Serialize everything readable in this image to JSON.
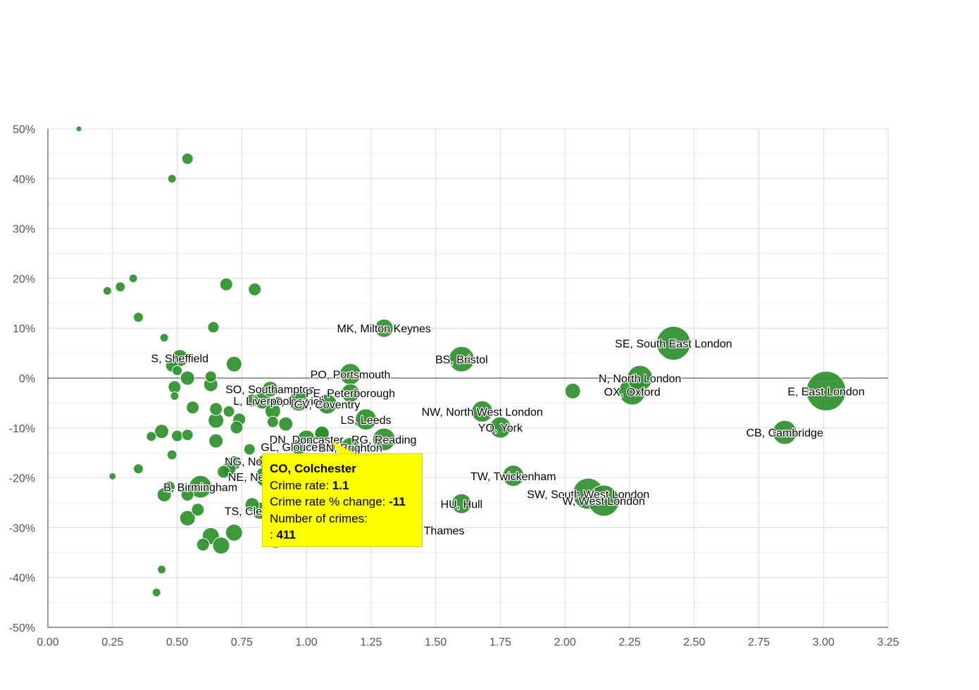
{
  "chart_data": {
    "type": "scatter",
    "xlim": [
      0,
      3.25
    ],
    "ylim": [
      -50,
      50
    ],
    "x_ticks": [
      "0.00",
      "0.25",
      "0.50",
      "0.75",
      "1.00",
      "1.25",
      "1.50",
      "1.75",
      "2.00",
      "2.25",
      "2.50",
      "2.75",
      "3.00",
      "3.25"
    ],
    "y_ticks": [
      "50%",
      "40%",
      "30%",
      "20%",
      "10%",
      "0%",
      "-10%",
      "-20%",
      "-30%",
      "-40%",
      "-50%"
    ],
    "grid": true,
    "point_color": "#2e8f2e",
    "highlight_color": "#ffffff",
    "points": [
      {
        "x": 0.12,
        "y": 50,
        "s": 4
      },
      {
        "x": 0.54,
        "y": 44,
        "s": 8
      },
      {
        "x": 0.48,
        "y": 40,
        "s": 6
      },
      {
        "x": 0.23,
        "y": 17.5,
        "s": 6
      },
      {
        "x": 0.28,
        "y": 18.3,
        "s": 7
      },
      {
        "x": 0.33,
        "y": 20,
        "s": 6
      },
      {
        "x": 0.69,
        "y": 18.8,
        "s": 9
      },
      {
        "x": 0.8,
        "y": 17.8,
        "s": 9
      },
      {
        "x": 0.35,
        "y": 12.2,
        "s": 7
      },
      {
        "x": 0.45,
        "y": 8.1,
        "s": 6
      },
      {
        "x": 0.64,
        "y": 10.2,
        "s": 8
      },
      {
        "x": 1.3,
        "y": 10,
        "s": 13,
        "label": "MK, Milton Keynes"
      },
      {
        "x": 0.51,
        "y": 4,
        "s": 12,
        "label": "S, Sheffield"
      },
      {
        "x": 0.48,
        "y": 2.5,
        "s": 9
      },
      {
        "x": 0.5,
        "y": 1.5,
        "s": 7
      },
      {
        "x": 0.54,
        "y": 0,
        "s": 10
      },
      {
        "x": 0.72,
        "y": 2.8,
        "s": 11
      },
      {
        "x": 0.63,
        "y": 0.3,
        "s": 8
      },
      {
        "x": 0.63,
        "y": -1.3,
        "s": 10
      },
      {
        "x": 0.49,
        "y": -1.8,
        "s": 9
      },
      {
        "x": 0.49,
        "y": -3.6,
        "s": 6
      },
      {
        "x": 1.6,
        "y": 3.8,
        "s": 18,
        "label": "BS, Bristol"
      },
      {
        "x": 1.17,
        "y": 0.8,
        "s": 15,
        "label": "PO, Portsmouth"
      },
      {
        "x": 2.42,
        "y": 7,
        "s": 24,
        "label": "SE, South East London"
      },
      {
        "x": 2.29,
        "y": 0,
        "s": 18,
        "label": "N, North London"
      },
      {
        "x": 2.26,
        "y": -2.7,
        "s": 19,
        "label": "OX, Oxford"
      },
      {
        "x": 2.03,
        "y": -2.6,
        "s": 11
      },
      {
        "x": 3.01,
        "y": -2.6,
        "s": 28,
        "label": "E, East London"
      },
      {
        "x": 0.86,
        "y": -2.2,
        "s": 11,
        "label": "SO, Southampton"
      },
      {
        "x": 1.17,
        "y": -3.0,
        "s": 13,
        "label": "PE, Peterborough"
      },
      {
        "x": 0.97,
        "y": -4.6,
        "s": 14,
        "label": "IP, Ipswich"
      },
      {
        "x": 0.83,
        "y": -4.5,
        "s": 12,
        "label": "L, Liverpool"
      },
      {
        "x": 1.08,
        "y": -5.2,
        "s": 14,
        "label": "CV, Coventry"
      },
      {
        "x": 0.79,
        "y": -4.5,
        "s": 9
      },
      {
        "x": 0.56,
        "y": -5.9,
        "s": 9
      },
      {
        "x": 0.65,
        "y": -6.2,
        "s": 9
      },
      {
        "x": 0.7,
        "y": -6.7,
        "s": 8
      },
      {
        "x": 0.87,
        "y": -6.6,
        "s": 11
      },
      {
        "x": 0.74,
        "y": -8.3,
        "s": 9
      },
      {
        "x": 0.65,
        "y": -8.5,
        "s": 11
      },
      {
        "x": 0.87,
        "y": -8.8,
        "s": 8
      },
      {
        "x": 0.92,
        "y": -9.2,
        "s": 10
      },
      {
        "x": 0.73,
        "y": -9.9,
        "s": 9
      },
      {
        "x": 1.23,
        "y": -8.3,
        "s": 15,
        "label": "LS, Leeds"
      },
      {
        "x": 1.68,
        "y": -6.7,
        "s": 15,
        "label": "NW, North West London"
      },
      {
        "x": 1.75,
        "y": -9.9,
        "s": 15,
        "label": "YO, York"
      },
      {
        "x": 2.85,
        "y": -10.9,
        "s": 17,
        "label": "CB, Cambridge"
      },
      {
        "x": 0.44,
        "y": -10.7,
        "s": 10
      },
      {
        "x": 0.4,
        "y": -11.7,
        "s": 7
      },
      {
        "x": 0.5,
        "y": -11.6,
        "s": 8
      },
      {
        "x": 0.54,
        "y": -11.4,
        "s": 8
      },
      {
        "x": 0.65,
        "y": -12.6,
        "s": 10
      },
      {
        "x": 1.3,
        "y": -12.3,
        "s": 16,
        "label": "RG, Reading"
      },
      {
        "x": 1.0,
        "y": -12.3,
        "s": 13,
        "label": "DN, Doncaster"
      },
      {
        "x": 1.06,
        "y": -11.1,
        "s": 11,
        "highlight": true
      },
      {
        "x": 0.97,
        "y": -13.8,
        "s": 11,
        "label": "GL, Gloucester"
      },
      {
        "x": 1.17,
        "y": -13.9,
        "s": 14,
        "label": "BN, Brighton"
      },
      {
        "x": 0.78,
        "y": -14.3,
        "s": 8
      },
      {
        "x": 0.48,
        "y": -15.4,
        "s": 7
      },
      {
        "x": 0.84,
        "y": -16.7,
        "s": 10,
        "label": "NG, Nottingham"
      },
      {
        "x": 0.72,
        "y": -17,
        "s": 10
      },
      {
        "x": 0.35,
        "y": -18.2,
        "s": 7
      },
      {
        "x": 0.7,
        "y": -18.2,
        "s": 10
      },
      {
        "x": 0.68,
        "y": -18.8,
        "s": 9
      },
      {
        "x": 0.84,
        "y": -19.8,
        "s": 14,
        "label": "NE, Newcastle"
      },
      {
        "x": 0.25,
        "y": -19.7,
        "s": 5
      },
      {
        "x": 1.8,
        "y": -19.6,
        "s": 15,
        "label": "TW, Twickenham"
      },
      {
        "x": 0.59,
        "y": -21.8,
        "s": 16,
        "label": "B, Birmingham"
      },
      {
        "x": 0.47,
        "y": -21.8,
        "s": 8
      },
      {
        "x": 0.45,
        "y": -23.4,
        "s": 10
      },
      {
        "x": 0.54,
        "y": -23.4,
        "s": 9
      },
      {
        "x": 2.09,
        "y": -23.2,
        "s": 22,
        "label": "SW, South West London"
      },
      {
        "x": 2.15,
        "y": -24.6,
        "s": 22,
        "label": "W, West London"
      },
      {
        "x": 1.6,
        "y": -25.2,
        "s": 14,
        "label": "HU, Hull"
      },
      {
        "x": 0.79,
        "y": -25.4,
        "s": 10
      },
      {
        "x": 0.58,
        "y": -26.4,
        "s": 9
      },
      {
        "x": 0.82,
        "y": -26.6,
        "s": 12,
        "label": "TS, Cleveland"
      },
      {
        "x": 0.54,
        "y": -28.1,
        "s": 11
      },
      {
        "x": 0.88,
        "y": -29.6,
        "s": 10
      },
      {
        "x": 1.35,
        "y": -30.5,
        "s": 13,
        "label": "KT, Kingston upon Thames"
      },
      {
        "x": 0.72,
        "y": -31.0,
        "s": 12
      },
      {
        "x": 0.63,
        "y": -31.7,
        "s": 12
      },
      {
        "x": 0.67,
        "y": -33.6,
        "s": 12
      },
      {
        "x": 0.6,
        "y": -33.4,
        "s": 9
      },
      {
        "x": 0.88,
        "y": -32.7,
        "s": 10
      },
      {
        "x": 0.44,
        "y": -38.4,
        "s": 6
      },
      {
        "x": 0.42,
        "y": -43.0,
        "s": 6
      }
    ]
  },
  "tooltip": {
    "title": "CO, Colchester",
    "rate_label": "Crime rate: ",
    "rate_value": "1.1",
    "change_label": "Crime rate % change: ",
    "change_value": "-11",
    "count_label": "Number of crimes:",
    "count_prefix": ": ",
    "count_value": "411"
  }
}
